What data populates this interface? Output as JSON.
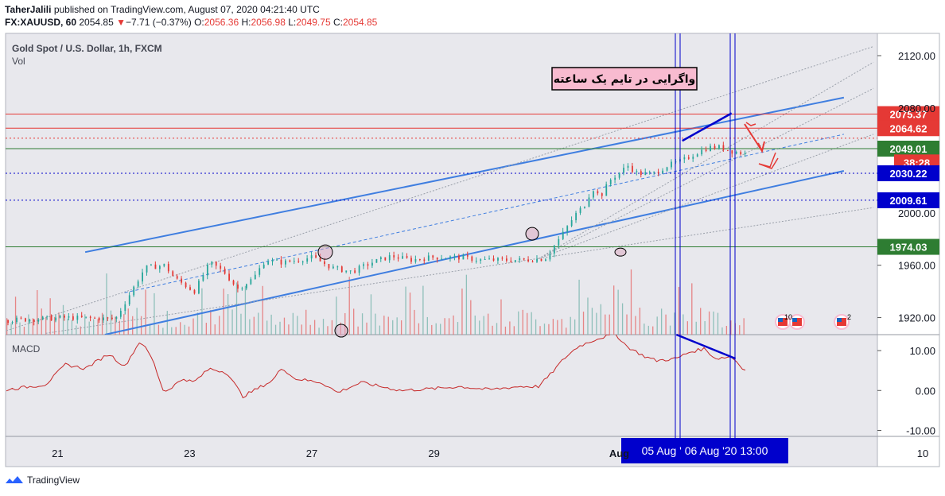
{
  "header": {
    "author": "TaherJalili",
    "published_text": "published on TradingView.com, August 07, 2020 04:21:40 UTC",
    "symbol": "FX:XAUUSD, 60",
    "price": "2054.85",
    "change_arrow": "▼",
    "change": "−7.71 (−0.37%)",
    "o_label": "O:",
    "o_val": "2056.36",
    "h_label": "H:",
    "h_val": "2056.98",
    "l_label": "L:",
    "l_val": "2049.75",
    "c_label": "C:",
    "c_val": "2054.85"
  },
  "legend": {
    "title": "Gold Spot / U.S. Dollar, 1h, FXCM",
    "vol": "Vol",
    "macd": "MACD"
  },
  "annotation_text": "واگرایی در تایم یک ساعته",
  "footer": {
    "brand": "TradingView"
  },
  "colors": {
    "up": "#26a69a",
    "down": "#e53935",
    "blue": "#3f7ee0",
    "navy": "#0000cc"
  },
  "chart_data": {
    "type": "candlestick",
    "title": "Gold Spot / U.S. Dollar, 1h, FXCM",
    "price_axis": {
      "ticks": [
        2120.0,
        1960.0,
        1920.0
      ],
      "ylim": [
        1907,
        2137
      ]
    },
    "hidden_ticks": [
      "2080.00",
      "2000.00"
    ],
    "macd_axis": {
      "ticks": [
        10.0,
        0.0,
        -10.0
      ],
      "ylim": [
        -11.5,
        14.0
      ]
    },
    "x_ticks": [
      "21",
      "23",
      "27",
      "29",
      "Aug",
      "10"
    ],
    "crosshair_label": "05 Aug '  06 Aug '20   13:00",
    "price_labels": [
      {
        "value": "2075.37",
        "type": "resistance"
      },
      {
        "value": "2064.62",
        "type": "resistance"
      },
      {
        "value": "2049.01",
        "type": "support"
      },
      {
        "value": "38:28",
        "type": "countdown"
      },
      {
        "value": "2030.22",
        "type": "level"
      },
      {
        "value": "2009.61",
        "type": "level"
      },
      {
        "value": "1974.03",
        "type": "support"
      }
    ],
    "price_path": [
      [
        0,
        1918
      ],
      [
        30,
        1920
      ],
      [
        55,
        1919
      ],
      [
        70,
        1958
      ],
      [
        80,
        1960
      ],
      [
        85,
        1950
      ],
      [
        95,
        1940
      ],
      [
        103,
        1962
      ],
      [
        110,
        1955
      ],
      [
        117,
        1942
      ],
      [
        125,
        1950
      ],
      [
        131,
        1964
      ],
      [
        140,
        1962
      ],
      [
        155,
        1966
      ],
      [
        165,
        1958
      ],
      [
        175,
        1955
      ],
      [
        185,
        1962
      ],
      [
        195,
        1967
      ],
      [
        205,
        1964
      ],
      [
        215,
        1966
      ],
      [
        224,
        1966
      ],
      [
        230,
        1966
      ],
      [
        240,
        1964
      ],
      [
        250,
        1964
      ],
      [
        262,
        1964
      ],
      [
        273,
        1965
      ],
      [
        282,
        1984
      ],
      [
        288,
        1998
      ],
      [
        293,
        2006
      ],
      [
        297,
        2019
      ],
      [
        301,
        2012
      ],
      [
        306,
        2025
      ],
      [
        311,
        2031
      ],
      [
        315,
        2036
      ],
      [
        320,
        2030
      ],
      [
        328,
        2030
      ],
      [
        335,
        2036
      ],
      [
        343,
        2040
      ],
      [
        350,
        2046
      ],
      [
        356,
        2050
      ],
      [
        362,
        2050
      ],
      [
        368,
        2047
      ],
      [
        375,
        2045
      ]
    ],
    "macd_path": [
      [
        0,
        0.2
      ],
      [
        20,
        1.5
      ],
      [
        30,
        6.5
      ],
      [
        40,
        5.5
      ],
      [
        52,
        9.2
      ],
      [
        60,
        6
      ],
      [
        68,
        12.5
      ],
      [
        74,
        8
      ],
      [
        80,
        -0.5
      ],
      [
        90,
        3
      ],
      [
        95,
        2
      ],
      [
        103,
        5.5
      ],
      [
        112,
        4.5
      ],
      [
        120,
        -1.5
      ],
      [
        135,
        2.5
      ],
      [
        140,
        5.8
      ],
      [
        146,
        3
      ],
      [
        160,
        2
      ],
      [
        168,
        -0.5
      ],
      [
        180,
        2
      ],
      [
        200,
        0
      ],
      [
        215,
        0.4
      ],
      [
        230,
        1
      ],
      [
        245,
        0.2
      ],
      [
        260,
        1
      ],
      [
        270,
        1
      ],
      [
        276,
        4
      ],
      [
        283,
        8
      ],
      [
        290,
        11
      ],
      [
        300,
        13
      ],
      [
        309,
        14.2
      ],
      [
        315,
        11
      ],
      [
        324,
        8.5
      ],
      [
        330,
        7.5
      ],
      [
        340,
        8
      ],
      [
        346,
        9.5
      ],
      [
        354,
        10.5
      ],
      [
        360,
        8
      ],
      [
        368,
        8.5
      ],
      [
        375,
        5
      ]
    ],
    "annotations": {
      "channel_main": {
        "upper": [
          [
            40,
            1970
          ],
          [
            425,
            2088
          ]
        ],
        "lower": [
          [
            50,
            1907
          ],
          [
            425,
            2032
          ]
        ]
      },
      "horizontal_levels": [
        2075.37,
        2064.62,
        2049.01,
        2030.22,
        2009.61,
        1974.03
      ],
      "divergence_price": [
        [
          343,
          2055
        ],
        [
          368,
          2076
        ]
      ],
      "divergence_macd": [
        [
          340,
          14
        ],
        [
          370,
          8
        ]
      ]
    }
  }
}
